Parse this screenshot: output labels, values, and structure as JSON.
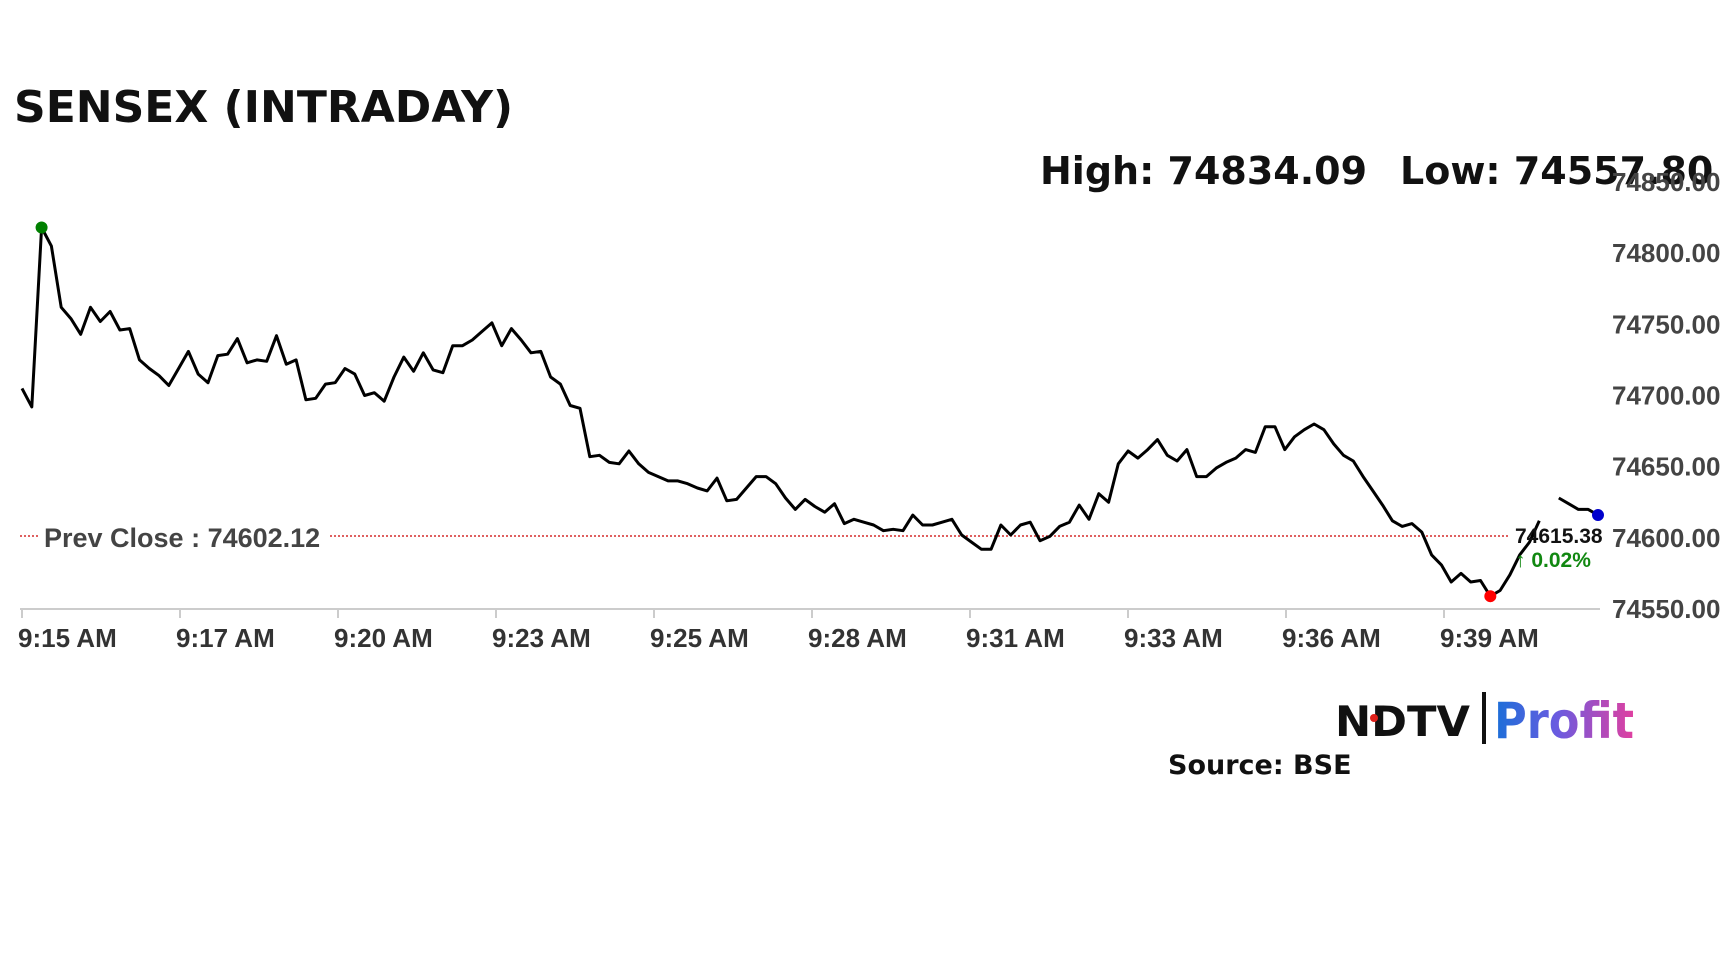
{
  "chart_data": {
    "type": "line",
    "title": "SENSEX (INTRADAY)",
    "high_label": "High: 74834.09",
    "low_label": "Low: 74557.80",
    "high": 74834.09,
    "low": 74557.8,
    "prev_close_label": "Prev Close : 74602.12",
    "prev_close": 74602.12,
    "last_value_label": "74615.38",
    "last_value": 74615.38,
    "change_label": "↑ 0.02%",
    "source_label": "Source: BSE",
    "ylim": [
      74550,
      74850
    ],
    "y_ticks": [
      74550,
      74600,
      74650,
      74700,
      74750,
      74800,
      74850
    ],
    "y_tick_labels": [
      "74550.00",
      "74600.00",
      "74650.00",
      "74700.00",
      "74750.00",
      "74800.00",
      "74850.00"
    ],
    "x_tick_labels": [
      "9:15 AM",
      "9:17 AM",
      "9:20 AM",
      "9:23 AM",
      "9:25 AM",
      "9:28 AM",
      "9:31 AM",
      "9:33 AM",
      "9:36 AM",
      "9:39 AM"
    ],
    "grid": false,
    "legend": "none",
    "colors": {
      "line": "#000000",
      "prev_close": "#cc0000",
      "high_marker": "#008000",
      "low_marker": "#ff0000",
      "last_marker": "#0000cc",
      "change": "#118811"
    },
    "series": [
      {
        "values": [
          74705,
          74692,
          74818,
          74805,
          74762,
          74754,
          74743,
          74762,
          74752,
          74759,
          74746,
          74747,
          74725,
          74719,
          74714,
          74707,
          74719,
          74731,
          74715,
          74709,
          74728,
          74729,
          74740,
          74723,
          74725,
          74724,
          74742,
          74722,
          74725,
          74697,
          74698,
          74708,
          74709,
          74719,
          74715,
          74700,
          74702,
          74696,
          74713,
          74727,
          74717,
          74730,
          74718,
          74716,
          74735,
          74735,
          74739,
          74745,
          74751,
          74735,
          74747,
          74739,
          74730,
          74731,
          74713,
          74708,
          74693,
          74691,
          74657,
          74658,
          74653,
          74652,
          74661,
          74652,
          74646,
          74643,
          74640,
          74640,
          74638,
          74635,
          74633,
          74642,
          74626,
          74627,
          74635,
          74643,
          74643,
          74638,
          74628,
          74620,
          74627,
          74622,
          74618,
          74624,
          74610,
          74613,
          74611,
          74609,
          74605,
          74606,
          74605,
          74616,
          74609,
          74609,
          74611,
          74613,
          74602,
          74597,
          74592,
          74592,
          74609,
          74602,
          74609,
          74611,
          74598,
          74601,
          74608,
          74611,
          74623,
          74613,
          74631,
          74625,
          74652,
          74661,
          74656,
          74662,
          74669,
          74658,
          74654,
          74662,
          74643,
          74643,
          74649,
          74653,
          74656,
          74662,
          74660,
          74678,
          74678,
          74662,
          74671,
          74676,
          74680,
          74676,
          74666,
          74658,
          74654,
          74643,
          74633,
          74623,
          74612,
          74608,
          74610,
          74604,
          74588,
          74581,
          74569,
          74575,
          74569,
          74570,
          74559,
          74563,
          74574,
          74588,
          74597,
          74612,
          74622,
          74628,
          74624,
          74620,
          74620,
          74616
        ],
        "gaps": [
          [
            155,
            157
          ]
        ]
      }
    ]
  },
  "logo": {
    "ndtv": "NDTV",
    "profit": "Profit"
  }
}
